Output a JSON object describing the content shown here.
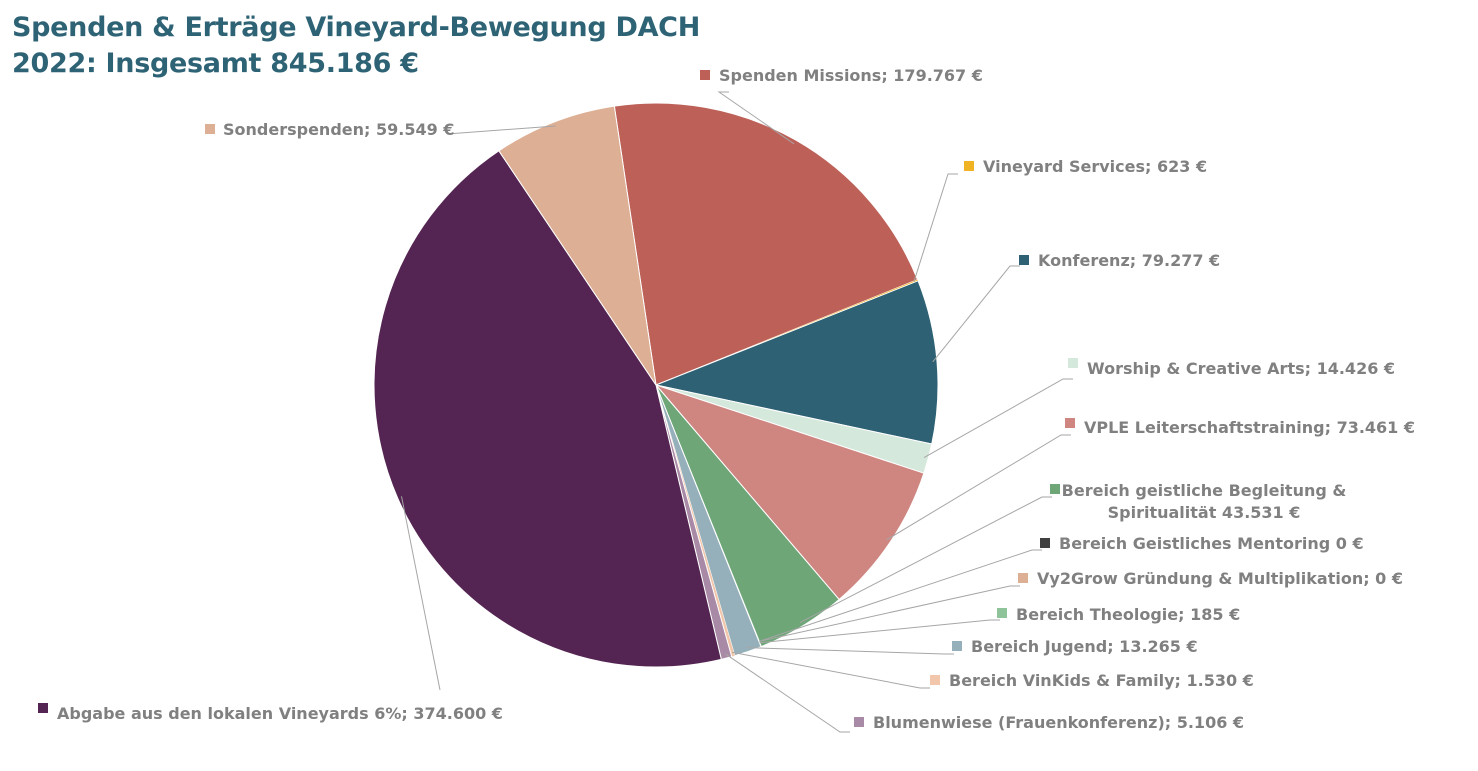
{
  "title": {
    "line1": "Spenden & Erträge Vineyard-Bewegung DACH",
    "line2": "2022: Insgesamt 845.186 €"
  },
  "chart_data": {
    "type": "pie",
    "title": "Spenden & Erträge Vineyard-Bewegung DACH 2022: Insgesamt 845.186 €",
    "total": 845186,
    "unit": "€",
    "slices": [
      {
        "name": "Spenden Missions",
        "value": 179767,
        "label": [
          "Spenden Missions; 179.767 €"
        ],
        "color": "#bd6158"
      },
      {
        "name": "Vineyard Services",
        "value": 623,
        "label": [
          "Vineyard Services; 623 €"
        ],
        "color": "#f0b323"
      },
      {
        "name": "Konferenz",
        "value": 79277,
        "label": [
          "Konferenz; 79.277 €"
        ],
        "color": "#2e6174"
      },
      {
        "name": "Worship & Creative Arts",
        "value": 14426,
        "label": [
          "Worship & Creative Arts; 14.426 €"
        ],
        "color": "#d5e8dc"
      },
      {
        "name": "VPLE Leiterschaftstraining",
        "value": 73461,
        "label": [
          "VPLE Leiterschaftstraining; 73.461 €"
        ],
        "color": "#cf8580"
      },
      {
        "name": "Bereich geistliche Begleitung & Spiritualität",
        "value": 43531,
        "label": [
          "Bereich geistliche Begleitung &",
          "Spiritualität 43.531 €"
        ],
        "color": "#6ea678"
      },
      {
        "name": "Bereich Geistliches Mentoring",
        "value": 0,
        "label": [
          "Bereich Geistliches Mentoring 0 €"
        ],
        "color": "#404040"
      },
      {
        "name": "Vy2Grow Gründung & Multiplikation",
        "value": 0,
        "label": [
          "Vy2Grow Gründung & Multiplikation; 0 €"
        ],
        "color": "#ddb095"
      },
      {
        "name": "Bereich Theologie",
        "value": 185,
        "label": [
          "Bereich Theologie; 185 €"
        ],
        "color": "#8fc39a"
      },
      {
        "name": "Bereich Jugend",
        "value": 13265,
        "label": [
          "Bereich Jugend; 13.265 €"
        ],
        "color": "#95b0ba"
      },
      {
        "name": "Bereich VinKids & Family",
        "value": 1530,
        "label": [
          "Bereich VinKids & Family; 1.530 €"
        ],
        "color": "#f2c6aa"
      },
      {
        "name": "Blumenwiese (Frauenkonferenz)",
        "value": 5106,
        "label": [
          "Blumenwiese (Frauenkonferenz); 5.106 €"
        ],
        "color": "#a88aa6"
      },
      {
        "name": "Abgabe aus den lokalen Vineyards 6%",
        "value": 374600,
        "label": [
          "Abgabe aus den lokalen Vineyards 6%; 374.600 €"
        ],
        "color": "#542552"
      },
      {
        "name": "Sonderspenden",
        "value": 59549,
        "label": [
          "Sonderspenden; 59.549 €"
        ],
        "color": "#ddaf94"
      }
    ],
    "start_angle_deg": -8.5,
    "direction": "clockwise",
    "legend": "none",
    "data_labels": "outside-with-leader-lines"
  }
}
